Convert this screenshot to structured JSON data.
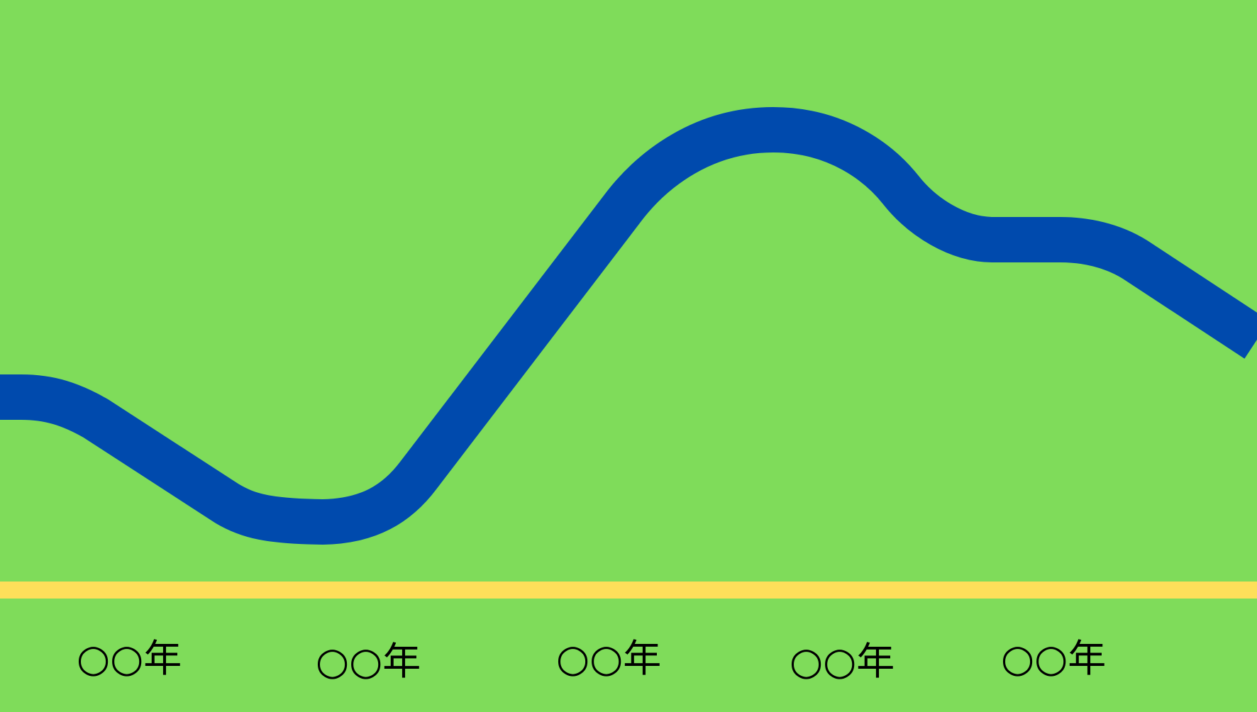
{
  "colors": {
    "background": "#7fdc5a",
    "river": "#004aad",
    "axis": "#fddf5a",
    "label": "#000000"
  },
  "timeline": {
    "labels": [
      "○○年",
      "○○年",
      "○○年",
      "○○年",
      "○○年"
    ]
  }
}
